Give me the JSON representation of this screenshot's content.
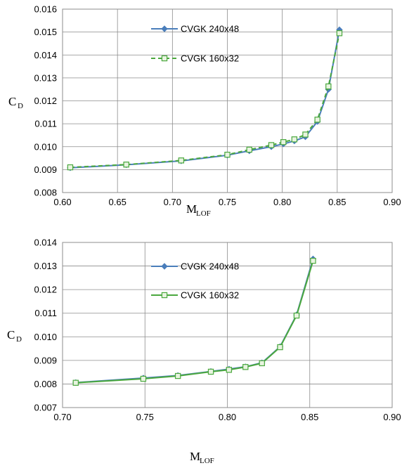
{
  "chart_data": [
    {
      "type": "line",
      "title": "",
      "xlabel": "M",
      "xlabel_sub": "LOF",
      "ylabel": "C",
      "ylabel_sub": "D",
      "xlim": [
        0.6,
        0.9
      ],
      "ylim": [
        0.008,
        0.016
      ],
      "xticks": [
        0.6,
        0.65,
        0.7,
        0.75,
        0.8,
        0.85,
        0.9
      ],
      "xtick_labels": [
        "0.60",
        "0.65",
        "0.70",
        "0.75",
        "0.80",
        "0.85",
        "0.90"
      ],
      "yticks": [
        0.008,
        0.009,
        0.01,
        0.011,
        0.012,
        0.013,
        0.014,
        0.015,
        0.016
      ],
      "ytick_labels": [
        "0.008",
        "0.009",
        "0.010",
        "0.011",
        "0.012",
        "0.013",
        "0.014",
        "0.015",
        "0.016"
      ],
      "grid": true,
      "legend_position": "upper-center",
      "series": [
        {
          "name": "CVGK 240x48",
          "color": "#4A7EBB",
          "marker": "diamond",
          "dash": "solid",
          "x": [
            0.607,
            0.658,
            0.708,
            0.75,
            0.77,
            0.79,
            0.801,
            0.811,
            0.821,
            0.832,
            0.842,
            0.852
          ],
          "y": [
            0.00908,
            0.00921,
            0.00938,
            0.00963,
            0.00982,
            0.01,
            0.01012,
            0.01025,
            0.01043,
            0.0111,
            0.0125,
            0.0151
          ]
        },
        {
          "name": "CVGK 160x32",
          "color": "#4BA83E",
          "marker": "square",
          "dash": "dashed",
          "x": [
            0.607,
            0.658,
            0.708,
            0.75,
            0.77,
            0.79,
            0.801,
            0.811,
            0.821,
            0.832,
            0.842,
            0.852
          ],
          "y": [
            0.0091,
            0.00922,
            0.0094,
            0.00965,
            0.00987,
            0.01007,
            0.0102,
            0.01032,
            0.01053,
            0.01118,
            0.01263,
            0.01495
          ]
        }
      ]
    },
    {
      "type": "line",
      "title": "",
      "xlabel": "M",
      "xlabel_sub": "LOF",
      "ylabel": "C",
      "ylabel_sub": "D",
      "xlim": [
        0.7,
        0.9
      ],
      "ylim": [
        0.007,
        0.014
      ],
      "xticks": [
        0.7,
        0.75,
        0.8,
        0.85,
        0.9
      ],
      "xtick_labels": [
        "0.70",
        "0.75",
        "0.80",
        "0.85",
        "0.90"
      ],
      "yticks": [
        0.007,
        0.008,
        0.009,
        0.01,
        0.011,
        0.012,
        0.013,
        0.014
      ],
      "ytick_labels": [
        "0.007",
        "0.008",
        "0.009",
        "0.010",
        "0.011",
        "0.012",
        "0.013",
        "0.014"
      ],
      "grid": true,
      "legend_position": "upper-center",
      "series": [
        {
          "name": "CVGK 240x48",
          "color": "#4A7EBB",
          "marker": "diamond",
          "dash": "solid",
          "x": [
            0.708,
            0.749,
            0.77,
            0.79,
            0.801,
            0.811,
            0.821,
            0.832,
            0.842,
            0.852
          ],
          "y": [
            0.00806,
            0.00825,
            0.00836,
            0.00853,
            0.00863,
            0.00873,
            0.0089,
            0.00958,
            0.01093,
            0.0133
          ]
        },
        {
          "name": "CVGK 160x32",
          "color": "#4BA83E",
          "marker": "square",
          "dash": "solid",
          "x": [
            0.708,
            0.749,
            0.77,
            0.79,
            0.801,
            0.811,
            0.821,
            0.832,
            0.842,
            0.852
          ],
          "y": [
            0.00805,
            0.00822,
            0.00834,
            0.00852,
            0.0086,
            0.00872,
            0.00888,
            0.00956,
            0.0109,
            0.01322
          ]
        }
      ]
    }
  ]
}
